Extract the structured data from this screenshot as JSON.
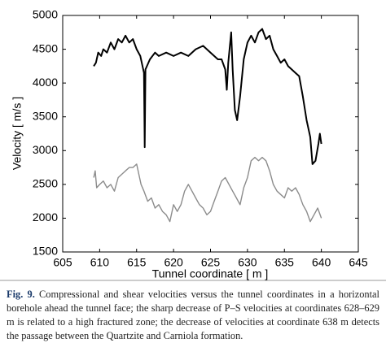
{
  "chart_data": {
    "type": "line",
    "x_label": "Tunnel coordinate [ m ]",
    "y_label": "Velocity [ m/s ]",
    "xlim": [
      605,
      645
    ],
    "xticks": [
      605,
      610,
      615,
      620,
      625,
      630,
      635,
      640,
      645
    ],
    "ylim": [
      1500,
      5000
    ],
    "yticks": [
      1500,
      2000,
      2500,
      3000,
      3500,
      4000,
      4500,
      5000
    ],
    "grid": false,
    "series": [
      {
        "color": "#000000",
        "x": [
          609.2,
          609.5,
          609.8,
          610.2,
          610.5,
          611,
          611.5,
          612,
          612.5,
          613,
          613.5,
          614,
          614.5,
          615,
          615.5,
          616,
          616.1,
          616.2,
          616.8,
          617.5,
          618,
          619,
          620,
          621,
          622,
          623,
          624,
          625,
          626,
          626.5,
          627,
          627.2,
          627.4,
          627.8,
          628,
          628.3,
          628.6,
          629,
          629.5,
          630,
          630.5,
          631,
          631.5,
          632,
          632.5,
          633,
          633.5,
          634,
          634.5,
          635,
          635.5,
          636,
          636.5,
          637,
          637.5,
          638,
          638.5,
          638.8,
          639.2,
          639.6,
          639.8,
          640
        ],
        "values": [
          4250,
          4300,
          4450,
          4400,
          4500,
          4450,
          4600,
          4500,
          4650,
          4600,
          4700,
          4600,
          4650,
          4500,
          4400,
          4150,
          3050,
          4200,
          4350,
          4450,
          4400,
          4450,
          4400,
          4450,
          4400,
          4500,
          4550,
          4450,
          4350,
          4350,
          4200,
          3900,
          4300,
          4750,
          4200,
          3600,
          3450,
          3800,
          4350,
          4600,
          4700,
          4600,
          4750,
          4800,
          4650,
          4700,
          4500,
          4400,
          4300,
          4350,
          4250,
          4200,
          4150,
          4100,
          3800,
          3450,
          3200,
          2800,
          2850,
          3100,
          3250,
          3100
        ]
      },
      {
        "color": "#8c8c8c",
        "x": [
          609.2,
          609.4,
          609.6,
          610,
          610.5,
          611,
          611.5,
          612,
          612.5,
          613,
          613.5,
          614,
          614.5,
          615,
          615.3,
          615.6,
          616,
          616.5,
          617,
          617.5,
          618,
          618.5,
          619,
          619.5,
          620,
          620.5,
          621,
          621.5,
          622,
          622.5,
          623,
          623.5,
          624,
          624.5,
          625,
          625.5,
          626,
          626.5,
          627,
          627.5,
          628,
          628.5,
          629,
          629.5,
          630,
          630.5,
          631,
          631.5,
          632,
          632.5,
          633,
          633.5,
          634,
          634.5,
          635,
          635.5,
          636,
          636.5,
          637,
          637.5,
          638,
          638.5,
          639,
          639.5,
          640
        ],
        "values": [
          2600,
          2700,
          2450,
          2500,
          2550,
          2450,
          2500,
          2400,
          2600,
          2650,
          2700,
          2750,
          2750,
          2800,
          2650,
          2500,
          2400,
          2250,
          2300,
          2150,
          2200,
          2100,
          2050,
          1950,
          2200,
          2100,
          2200,
          2400,
          2500,
          2400,
          2300,
          2200,
          2150,
          2050,
          2100,
          2250,
          2400,
          2550,
          2600,
          2500,
          2400,
          2300,
          2200,
          2450,
          2600,
          2850,
          2900,
          2850,
          2900,
          2850,
          2700,
          2500,
          2400,
          2350,
          2300,
          2450,
          2400,
          2450,
          2350,
          2200,
          2100,
          1950,
          2050,
          2150,
          2000
        ]
      }
    ]
  },
  "caption": {
    "label": "Fig. 9.",
    "text": "Compressional and shear velocities versus the tunnel coordinates in a horizontal borehole ahead the tunnel face; the sharp decrease of P–S velocities at coordinates 628–629 m is related to a high fractured zone; the decrease of velocities at coordinate 638 m detects the passage between the Quartzite and Carniola formation."
  }
}
